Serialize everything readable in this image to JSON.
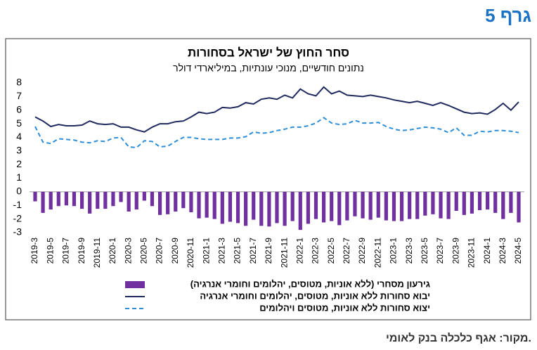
{
  "header": {
    "title": "גרף 5"
  },
  "chart_data": {
    "type": "combo",
    "title": "סחר החוץ של ישראל בסחורות",
    "subtitle": "נתונים חודשיים, מנוכי עונתיות, במיליארדי דולר",
    "categories": [
      "2019-3",
      null,
      "2019-5",
      null,
      "2019-7",
      null,
      "2019-9",
      null,
      "2019-11",
      null,
      "2020-1",
      null,
      "2020-3",
      null,
      "2020-5",
      null,
      "2020-7",
      null,
      "2020-9",
      null,
      "2020-11",
      null,
      "2021-1",
      null,
      "2021-3",
      null,
      "2021-5",
      null,
      "2021-7",
      null,
      "2021-9",
      null,
      "2021-11",
      null,
      "2022-1",
      null,
      "2022-3",
      null,
      "2022-5",
      null,
      "2022-7",
      null,
      "2022-9",
      null,
      "2022-11",
      null,
      "2023-1",
      null,
      "2023-3",
      null,
      "2023-5",
      null,
      "2023-7",
      null,
      "2023-9",
      null,
      "2023-11",
      null,
      "2024-1",
      null,
      "2024-3",
      null,
      "2024-5"
    ],
    "series": [
      {
        "name": "גירעון מסחרי (ללא אוניות, מטוסים, יהלומים וחומרי אנרגיה)",
        "type": "bar",
        "color": "#7030a0",
        "values": [
          -0.7,
          -1.55,
          -1.3,
          -1.05,
          -1.0,
          -1.05,
          -1.25,
          -1.6,
          -1.25,
          -1.25,
          -1.05,
          -0.75,
          -1.45,
          -1.3,
          -0.65,
          -1.05,
          -1.7,
          -1.65,
          -1.45,
          -1.2,
          -1.5,
          -1.95,
          -1.9,
          -2.0,
          -2.35,
          -2.2,
          -2.3,
          -2.5,
          -2.05,
          -2.5,
          -2.55,
          -2.3,
          -2.5,
          -2.15,
          -2.8,
          -2.35,
          -2.0,
          -2.25,
          -2.15,
          -2.45,
          -2.1,
          -1.8,
          -1.95,
          -2.05,
          -1.9,
          -2.1,
          -2.15,
          -2.15,
          -2.0,
          -2.0,
          -1.75,
          -1.65,
          -1.95,
          -2.0,
          -1.4,
          -1.7,
          -1.6,
          -1.35,
          -1.3,
          -1.55,
          -2.0,
          -1.55,
          -2.25
        ]
      },
      {
        "name": "יבוא סחורות ללא אוניות, מטוסים, יהלומים וחומרי אנרגיה",
        "type": "line",
        "color": "#1f2a5e",
        "dashed": false,
        "values": [
          5.5,
          5.2,
          4.8,
          4.95,
          4.85,
          4.85,
          4.9,
          5.2,
          5.0,
          4.95,
          5.0,
          4.75,
          4.75,
          4.55,
          4.4,
          4.75,
          5.0,
          5.0,
          5.15,
          5.2,
          5.5,
          5.85,
          5.75,
          5.85,
          6.2,
          6.15,
          6.25,
          6.55,
          6.45,
          6.8,
          6.9,
          6.8,
          7.1,
          6.9,
          7.55,
          7.2,
          7.05,
          7.7,
          7.2,
          7.4,
          7.1,
          7.05,
          7.0,
          7.1,
          7.0,
          6.9,
          6.75,
          6.65,
          6.55,
          6.65,
          6.5,
          6.35,
          6.55,
          6.35,
          6.1,
          5.85,
          5.75,
          5.8,
          5.7,
          6.05,
          6.5,
          6.0,
          6.6
        ]
      },
      {
        "name": "יצוא סחורות ללא אוניות, מטוסים ויהלומים",
        "type": "line",
        "color": "#2e8fd6",
        "dashed": true,
        "values": [
          4.8,
          3.65,
          3.55,
          3.9,
          3.85,
          3.8,
          3.65,
          3.6,
          3.75,
          3.7,
          3.95,
          4.0,
          3.3,
          3.25,
          3.75,
          3.7,
          3.3,
          3.35,
          3.7,
          4.0,
          4.0,
          3.9,
          3.85,
          3.85,
          3.85,
          3.95,
          3.95,
          4.05,
          4.4,
          4.3,
          4.35,
          4.5,
          4.6,
          4.75,
          4.75,
          4.85,
          5.05,
          5.45,
          5.05,
          4.95,
          5.0,
          5.25,
          5.05,
          5.05,
          5.1,
          4.8,
          4.6,
          4.5,
          4.55,
          4.65,
          4.75,
          4.7,
          4.6,
          4.35,
          4.7,
          4.15,
          4.15,
          4.45,
          4.4,
          4.5,
          4.5,
          4.45,
          4.35
        ]
      }
    ],
    "ylim": [
      -3,
      8
    ],
    "yticks": [
      8,
      7,
      6,
      5,
      4,
      3,
      2,
      1,
      0,
      -1,
      -2,
      -3
    ],
    "grid": false
  },
  "footer": {
    "source": "מקור: אגף כלכלה בנק לאומי."
  }
}
